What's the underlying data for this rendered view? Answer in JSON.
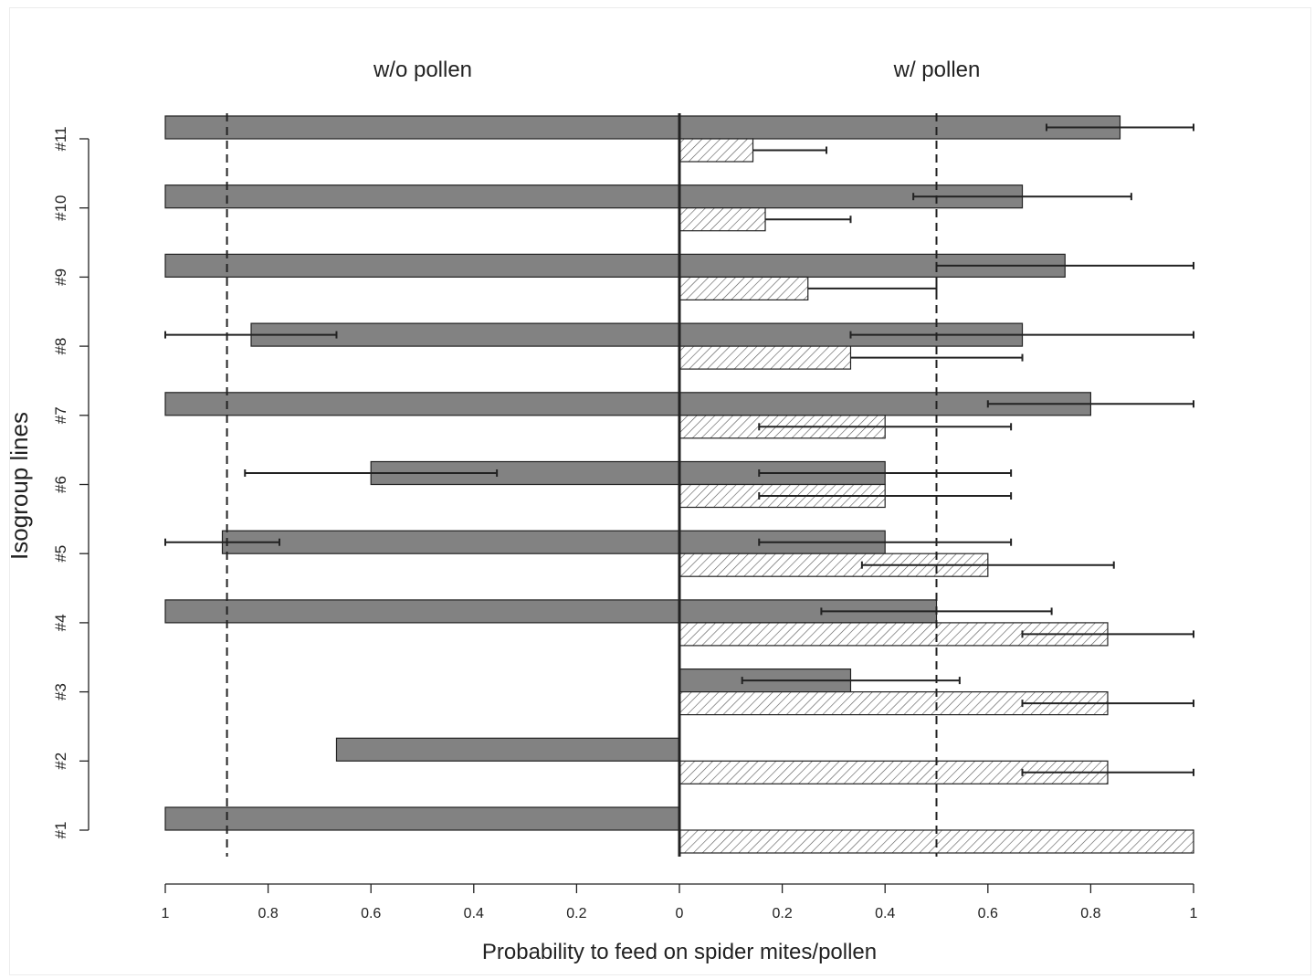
{
  "chart_data": {
    "type": "bar",
    "orientation": "horizontal",
    "xlabel": "Probability to feed on spider mites/pollen",
    "ylabel": "Isogroup lines",
    "panels": [
      {
        "name": "w/o pollen",
        "direction": "left"
      },
      {
        "name": "w/ pollen",
        "direction": "right"
      }
    ],
    "categories": [
      "#1",
      "#2",
      "#3",
      "#4",
      "#5",
      "#6",
      "#7",
      "#8",
      "#9",
      "#10",
      "#11"
    ],
    "x_ticks_left": [
      "1",
      "0.8",
      "0.6",
      "0.4",
      "0.2",
      "0"
    ],
    "x_ticks_right": [
      "0.2",
      "0.4",
      "0.6",
      "0.8",
      "1"
    ],
    "xlim": [
      0,
      1
    ],
    "grid": false,
    "legend": "none",
    "reference_lines": [
      {
        "panel": "w/o pollen",
        "value": 0.88,
        "style": "dashed"
      },
      {
        "panel": "w/ pollen",
        "value": 0.5,
        "style": "dashed"
      }
    ],
    "series": [
      {
        "panel": "w/o pollen",
        "fill": "solid",
        "values": [
          1,
          0.667,
          null,
          1,
          0.889,
          0.6,
          1,
          0.833,
          1,
          1,
          1
        ],
        "err_low": [
          null,
          null,
          null,
          null,
          0.778,
          0.355,
          null,
          0.667,
          null,
          null,
          null
        ],
        "err_high": [
          null,
          null,
          null,
          null,
          1,
          0.845,
          null,
          1,
          null,
          null,
          null
        ]
      },
      {
        "panel": "w/ pollen",
        "fill": "solid",
        "values": [
          null,
          null,
          0.333,
          0.5,
          0.4,
          0.4,
          0.8,
          0.667,
          0.75,
          0.667,
          0.857
        ],
        "err_low": [
          null,
          null,
          0.122,
          0.276,
          0.155,
          0.155,
          0.6,
          0.333,
          0.5,
          0.455,
          0.714
        ],
        "err_high": [
          null,
          null,
          0.545,
          0.724,
          0.645,
          0.645,
          1,
          1,
          1,
          0.879,
          1
        ]
      },
      {
        "panel": "w/ pollen",
        "fill": "hatched",
        "values": [
          1,
          0.833,
          0.833,
          0.833,
          0.6,
          0.4,
          0.4,
          0.333,
          0.25,
          0.167,
          0.143
        ],
        "err_low": [
          null,
          0.667,
          0.667,
          0.667,
          0.355,
          0.155,
          0.155,
          null,
          null,
          null,
          null
        ],
        "err_high": [
          null,
          1,
          1,
          1,
          0.845,
          0.645,
          0.645,
          0.667,
          0.5,
          0.333,
          0.286
        ]
      }
    ],
    "colors": {
      "solid_bar": "#828282",
      "hatch_line": "#555555",
      "ink": "#222222"
    }
  }
}
